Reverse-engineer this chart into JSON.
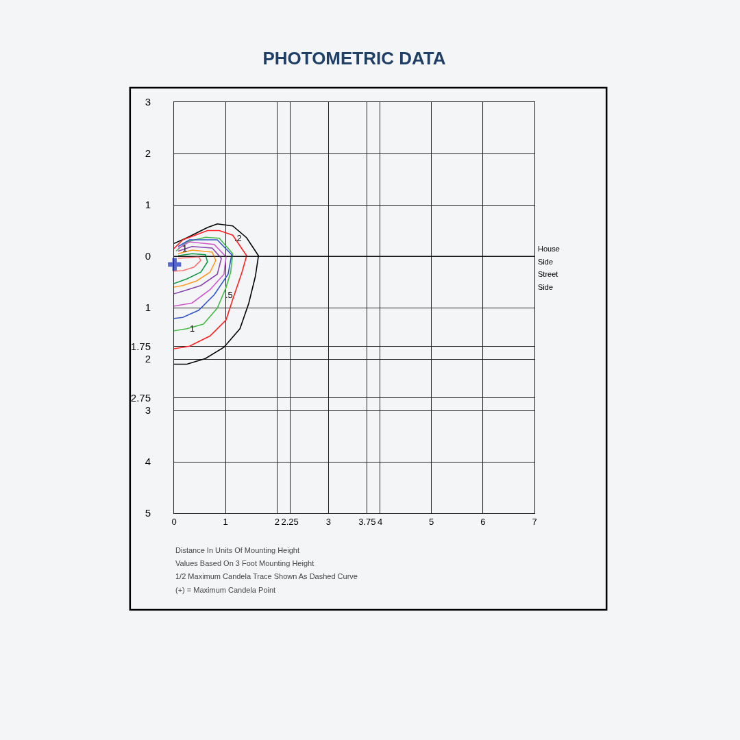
{
  "chart_data": {
    "type": "line",
    "title": "PHOTOMETRIC DATA",
    "xlim": [
      0,
      7
    ],
    "ylim": [
      -5,
      3
    ],
    "xticks": [
      0,
      1,
      2,
      2.25,
      3,
      3.75,
      4,
      5,
      6,
      7
    ],
    "yticks": [
      3,
      2,
      1,
      0,
      {
        "value": -1,
        "label": "1"
      },
      {
        "value": -1.75,
        "label": "1.75"
      },
      {
        "value": -2,
        "label": "2"
      },
      {
        "value": -2.75,
        "label": "2.75"
      },
      {
        "value": -3,
        "label": "3"
      },
      {
        "value": -4,
        "label": "4"
      },
      {
        "value": -5,
        "label": "5"
      }
    ],
    "grid": true,
    "marker": "none",
    "line_style": "solid",
    "series": [
      {
        "color": "#000000",
        "x": [
          0,
          0.25,
          0.65,
          0.84,
          1.14,
          1.41,
          1.64,
          1.58,
          1.45,
          1.28,
          0.97,
          0.61,
          0.25,
          0
        ],
        "values": [
          0.25,
          0.36,
          0.56,
          0.63,
          0.59,
          0.36,
          0.01,
          -0.39,
          -0.92,
          -1.41,
          -1.77,
          -1.99,
          -2.1,
          -2.1
        ]
      },
      {
        "color": "#ff2020",
        "x": [
          0,
          0.17,
          0.65,
          0.88,
          1.14,
          1.41,
          1.32,
          1.14,
          1.01,
          0.7,
          0.3,
          0
        ],
        "values": [
          0.15,
          0.32,
          0.5,
          0.5,
          0.41,
          0.01,
          -0.31,
          -0.84,
          -1.24,
          -1.55,
          -1.75,
          -1.8
        ]
      },
      {
        "color": "#44bb44",
        "x": [
          0.04,
          0.25,
          0.61,
          0.88,
          1.14,
          1.1,
          1.01,
          0.84,
          0.57,
          0.25,
          0
        ],
        "values": [
          0.1,
          0.28,
          0.37,
          0.35,
          0.05,
          -0.31,
          -0.61,
          -1.01,
          -1.32,
          -1.41,
          -1.45
        ]
      },
      {
        "color": "#3355cc",
        "x": [
          0.08,
          0.3,
          0.84,
          1.12,
          1.05,
          0.78,
          0.48,
          0.17,
          0
        ],
        "values": [
          0.19,
          0.32,
          0.32,
          0.03,
          -0.35,
          -0.75,
          -1.05,
          -1.19,
          -1.21
        ]
      },
      {
        "color": "#cc55cc",
        "x": [
          0.08,
          0.3,
          0.78,
          1.01,
          0.97,
          0.7,
          0.35,
          0
        ],
        "values": [
          0.15,
          0.28,
          0.23,
          -0.01,
          -0.35,
          -0.65,
          -0.91,
          -0.97
        ]
      },
      {
        "color": "#8844aa",
        "x": [
          0.08,
          0.35,
          0.74,
          0.92,
          0.84,
          0.52,
          0.17,
          0
        ],
        "values": [
          0.1,
          0.19,
          0.16,
          -0.04,
          -0.35,
          -0.57,
          -0.68,
          -0.73
        ]
      },
      {
        "color": "#ff9922",
        "x": [
          0.08,
          0.35,
          0.74,
          0.81,
          0.7,
          0.44,
          0.17,
          0
        ],
        "values": [
          0.05,
          0.12,
          0.08,
          -0.08,
          -0.31,
          -0.48,
          -0.57,
          -0.6
        ]
      },
      {
        "color": "#119944",
        "x": [
          0.08,
          0.35,
          0.61,
          0.65,
          0.52,
          0.25,
          0
        ],
        "values": [
          0.01,
          0.05,
          0.03,
          -0.11,
          -0.31,
          -0.44,
          -0.53
        ]
      },
      {
        "color": "#ff7070",
        "x": [
          0.08,
          0.48,
          0.52,
          0.39,
          0.17,
          0
        ],
        "values": [
          -0.04,
          -0.01,
          -0.08,
          -0.21,
          -0.28,
          -0.29
        ]
      },
      {
        "type": "scatter",
        "marker": "cross",
        "color": "#5566cc",
        "x": [
          0.01
        ],
        "values": [
          -0.16
        ]
      }
    ],
    "ref_lines": [
      {
        "axis": "y",
        "value": 0,
        "color": "#000000"
      }
    ],
    "annotations": [
      {
        "text": "1",
        "x": 0.1,
        "y": 0.16
      },
      {
        "text": ".2",
        "x": 1.12,
        "y": 0.36
      },
      {
        "text": ".5",
        "x": 0.95,
        "y": -0.75
      },
      {
        "text": "1",
        "x": 0.25,
        "y": -1.41
      },
      "House",
      "Side",
      "Street",
      "Side",
      "Distance In Units Of Mounting Height",
      "Values Based On 3 Foot Mounting Height",
      "1/2 Maximum Candela Trace Shown As Dashed Curve",
      "(+) = Maximum Candela Point"
    ]
  }
}
